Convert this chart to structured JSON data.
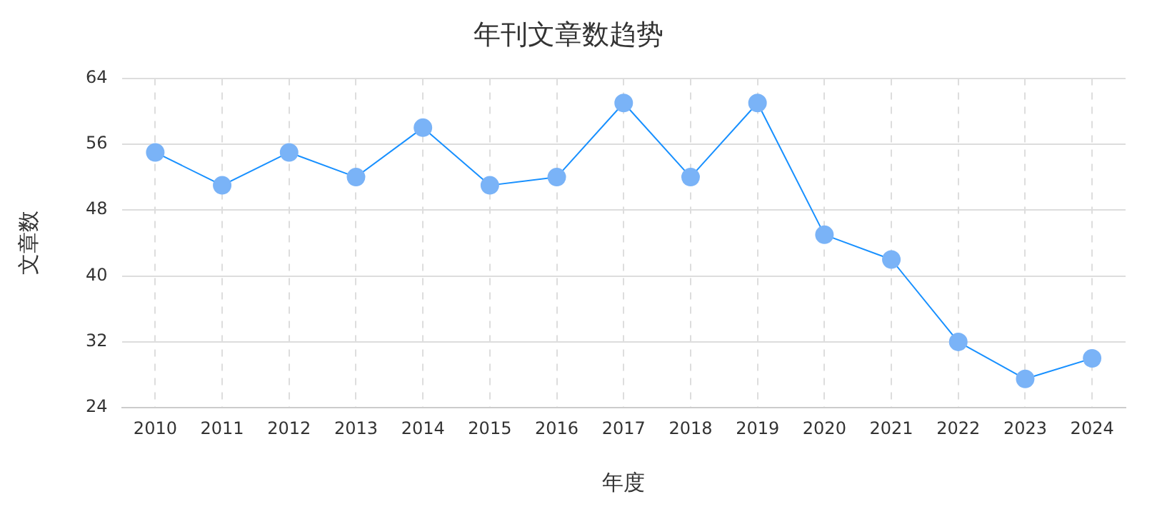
{
  "chart_data": {
    "type": "line",
    "title": "年刊文章数趋势",
    "xlabel": "年度",
    "ylabel": "文章数",
    "categories": [
      "2010",
      "2011",
      "2012",
      "2013",
      "2014",
      "2015",
      "2016",
      "2017",
      "2018",
      "2019",
      "2020",
      "2021",
      "2022",
      "2023",
      "2024"
    ],
    "series": [
      {
        "color": "#1890ff",
        "values": [
          55,
          51,
          55,
          52,
          58,
          51,
          52,
          61,
          52,
          61,
          45,
          42,
          32,
          27.5,
          30
        ]
      }
    ],
    "ylim": [
      24,
      64
    ],
    "yticks": [
      24,
      32,
      40,
      48,
      56,
      64
    ],
    "grid": true,
    "legend": false,
    "marker": "circle",
    "line_style": "solid"
  }
}
